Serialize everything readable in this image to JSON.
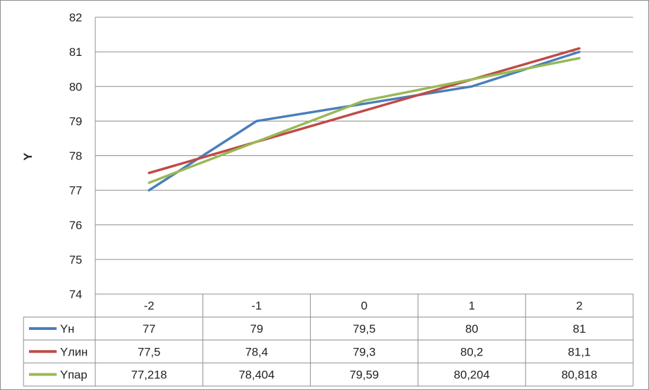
{
  "chart_data": {
    "type": "line",
    "title": "",
    "xlabel": "",
    "ylabel": "Y",
    "categories": [
      "-2",
      "-1",
      "0",
      "1",
      "2"
    ],
    "ylim": [
      74,
      82
    ],
    "yticks": [
      74,
      75,
      76,
      77,
      78,
      79,
      80,
      81,
      82
    ],
    "grid": true,
    "legend": "data-table",
    "series": [
      {
        "name": "Yн",
        "color": "#4a7ebb",
        "values": [
          77,
          79,
          79.5,
          80,
          81
        ],
        "labels": [
          "77",
          "79",
          "79,5",
          "80",
          "81"
        ]
      },
      {
        "name": "Yлин",
        "color": "#be4b48",
        "values": [
          77.5,
          78.4,
          79.3,
          80.2,
          81.1
        ],
        "labels": [
          "77,5",
          "78,4",
          "79,3",
          "80,2",
          "81,1"
        ]
      },
      {
        "name": "Yпар",
        "color": "#98b954",
        "values": [
          77.218,
          78.404,
          79.59,
          80.204,
          80.818
        ],
        "labels": [
          "77,218",
          "78,404",
          "79,59",
          "80,204",
          "80,818"
        ]
      }
    ]
  }
}
